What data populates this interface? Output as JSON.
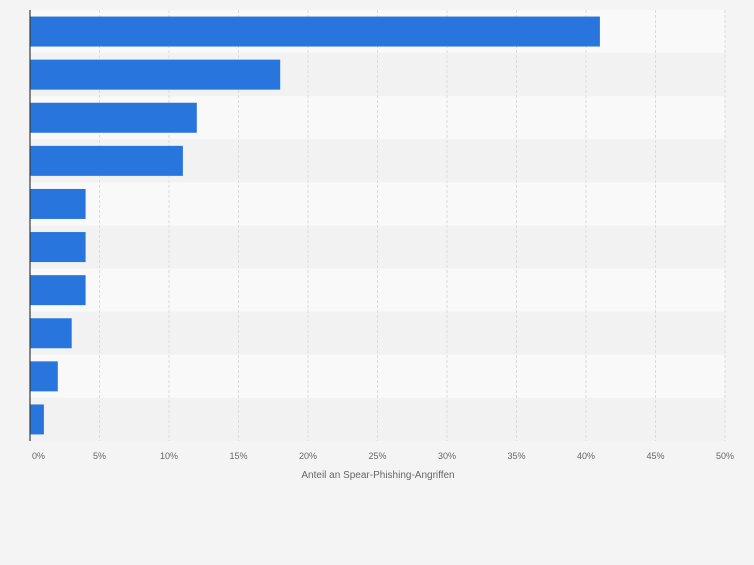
{
  "chart_data": {
    "type": "bar",
    "orientation": "horizontal",
    "categories": [
      "",
      "",
      "",
      "",
      "",
      "",
      "",
      "",
      "",
      ""
    ],
    "values": [
      41,
      18,
      12,
      11,
      4,
      4,
      4,
      3,
      2,
      1
    ],
    "xlabel": "Anteil an Spear-Phishing-Angriffen",
    "ylabel": "",
    "xlim": [
      0,
      50
    ],
    "x_ticks": [
      "0%",
      "5%",
      "10%",
      "15%",
      "20%",
      "25%",
      "30%",
      "35%",
      "40%",
      "45%",
      "50%"
    ],
    "grid": true,
    "bar_color": "#2876dd",
    "row_band_colors": [
      "#f9f9f9",
      "#f2f2f2"
    ]
  }
}
